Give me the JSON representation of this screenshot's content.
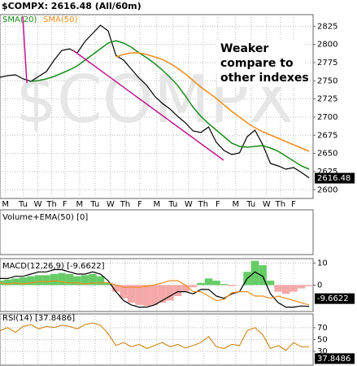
{
  "chart_data": [
    {
      "type": "line",
      "title": "$COMPX: 2616.48 (All/60m)",
      "watermark": "$COMPX",
      "annotation": [
        "Weaker",
        "compare to",
        "other indexes"
      ],
      "x": [
        0,
        0.5,
        1,
        1.5,
        2,
        2.5,
        3,
        3.5,
        4,
        4.5,
        5,
        5.5,
        6,
        6.5,
        7,
        7.5,
        8,
        8.5,
        9,
        9.5,
        10,
        10.5,
        11,
        11.5,
        12,
        12.5,
        13,
        13.5,
        14,
        14.5,
        15,
        15.5,
        16,
        16.5,
        17,
        17.5,
        18,
        18.5,
        19,
        19.5,
        20
      ],
      "series": [
        {
          "color": "#000000",
          "values": [
            2754.8,
            2757.0,
            2758.2,
            2752.6,
            2749.2,
            2755.9,
            2762.6,
            2778.3,
            2791.7,
            2794,
            2788.4,
            2804.1,
            2815.3,
            2826.5,
            2818.6,
            2785,
            2778.3,
            2766,
            2753.7,
            2743.6,
            2729.1,
            2719,
            2711.1,
            2701.1,
            2692.1,
            2680.9,
            2678.7,
            2686.5,
            2665.2,
            2654,
            2648.5,
            2650.7,
            2673.1,
            2682,
            2661.9,
            2636.1,
            2632.8,
            2628.3,
            2630.5,
            2623.8,
            2616.48
          ]
        },
        {
          "name": "SMA(20)",
          "color": "#1a8c1a",
          "values": [
            null,
            null,
            null,
            null,
            2749.2,
            2750.3,
            2752.6,
            2755.9,
            2760.4,
            2764.9,
            2770.5,
            2778.3,
            2786.2,
            2794,
            2801.8,
            2805.2,
            2801.8,
            2796.2,
            2788.4,
            2781.7,
            2773.8,
            2764.9,
            2754.8,
            2743.6,
            2729.1,
            2713.4,
            2701.1,
            2691,
            2682,
            2673.1,
            2664.1,
            2659.6,
            2658.5,
            2659.6,
            2660.8,
            2657.4,
            2652.9,
            2646.2,
            2639.5,
            2632.8,
            2628.3
          ]
        },
        {
          "name": "SMA(50)",
          "color": "#f08c1e",
          "values": [
            null,
            null,
            null,
            null,
            null,
            null,
            null,
            null,
            null,
            null,
            null,
            null,
            null,
            null,
            null,
            2782.8,
            2786.2,
            2788.4,
            2788.4,
            2786.2,
            2782.8,
            2779.4,
            2773.8,
            2767.1,
            2759.3,
            2750.3,
            2741.4,
            2733.5,
            2725.7,
            2716.7,
            2707.8,
            2699.9,
            2692.1,
            2685.4,
            2679.8,
            2675.3,
            2670.8,
            2666.3,
            2661.9,
            2657.4,
            2652.9
          ]
        }
      ],
      "xlim": [
        0,
        20.26
      ],
      "xticks": [
        {
          "value": 0.35,
          "label": "M"
        },
        {
          "value": 1.5,
          "label": "Tu"
        },
        {
          "value": 2.45,
          "label": "W"
        },
        {
          "value": 3.35,
          "label": "Th"
        },
        {
          "value": 4.2,
          "label": "F"
        },
        {
          "value": 5.15,
          "label": "M"
        },
        {
          "value": 6.15,
          "label": "Tu"
        },
        {
          "value": 7.15,
          "label": "W"
        },
        {
          "value": 8.1,
          "label": "Th"
        },
        {
          "value": 9.05,
          "label": "F"
        },
        {
          "value": 10.15,
          "label": "M"
        },
        {
          "value": 11.2,
          "label": "Tu"
        },
        {
          "value": 12.2,
          "label": "W"
        },
        {
          "value": 13.15,
          "label": "Th"
        },
        {
          "value": 14.1,
          "label": "F"
        },
        {
          "value": 15.25,
          "label": "M"
        },
        {
          "value": 16.25,
          "label": "Tu"
        },
        {
          "value": 17.25,
          "label": "W"
        },
        {
          "value": 18.15,
          "label": "Th"
        },
        {
          "value": 19,
          "label": "F"
        }
      ],
      "ylim": [
        2588,
        2841
      ],
      "yticks": [
        2600,
        2625,
        2650,
        2675,
        2700,
        2725,
        2750,
        2775,
        2800,
        2825
      ],
      "grid": true
    },
    {
      "type": "volume",
      "title": "Volume+EMA(50) [0]"
    },
    {
      "type": "macd",
      "title": "MACD(12,26,9) [-9.6622]",
      "series": [
        {
          "color": "#66cc66",
          "negative_color": "#f5a8a8",
          "values": [
            2,
            2.5,
            3,
            3.5,
            4,
            4.5,
            4.5,
            5,
            5.5,
            5,
            4,
            4.5,
            5,
            4,
            1,
            -3,
            -6,
            -8,
            -9,
            -9.5,
            -9,
            -8,
            -7,
            -5,
            -3,
            -1,
            1,
            3,
            2,
            0.5,
            -0.5,
            0,
            6,
            11,
            9,
            2,
            -3,
            -4,
            -3,
            -1.5,
            -0.5
          ]
        },
        {
          "color": "#000000",
          "values": [
            3,
            3,
            4,
            4,
            5,
            6,
            6,
            7,
            7,
            6,
            5,
            5,
            6,
            5,
            2,
            -3,
            -7,
            -9,
            -10,
            -10,
            -9,
            -7,
            -5,
            -3,
            -3,
            -4,
            -2,
            -2,
            -5,
            -6,
            -4,
            -3,
            3,
            6,
            4,
            -4,
            -8,
            -10,
            -10,
            -9.5,
            -9.6622
          ]
        },
        {
          "color": "#f08c1e",
          "values": [
            1,
            0.5,
            1,
            0.5,
            1,
            1.5,
            1.5,
            2,
            1.5,
            1,
            1,
            0.5,
            1,
            1,
            1,
            0,
            -1,
            -1,
            -1,
            -0.5,
            0,
            1,
            2,
            2,
            0,
            -3,
            -3,
            -5,
            -7,
            -6.5,
            -3.5,
            -3,
            -3,
            -5,
            -5,
            -6,
            -5,
            -6,
            -7,
            -8,
            -9.1
          ]
        }
      ],
      "ylim": [
        -12,
        12
      ],
      "yticks": [
        0,
        10
      ],
      "grid": true
    },
    {
      "type": "rsi",
      "title": "RSI(14) [37.8486]",
      "series": [
        {
          "color": "#c87800",
          "values": [
            65,
            70,
            62,
            72,
            75,
            68,
            72,
            70,
            74,
            72,
            68,
            75,
            78,
            74,
            60,
            40,
            45,
            38,
            42,
            35,
            40,
            45,
            38,
            42,
            36,
            40,
            45,
            55,
            38,
            35,
            42,
            40,
            65,
            70,
            58,
            35,
            40,
            32,
            45,
            38,
            37.8486
          ]
        }
      ],
      "ylim": [
        7,
        93
      ],
      "yticks": [
        30,
        50,
        70
      ],
      "grid": true
    }
  ]
}
